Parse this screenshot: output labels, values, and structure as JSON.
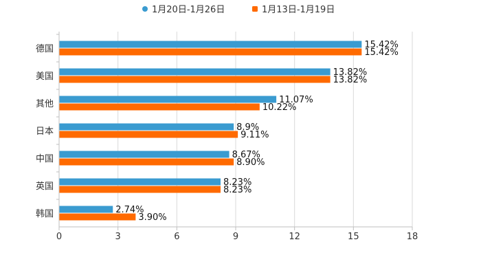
{
  "chart_data": {
    "type": "bar",
    "orientation": "horizontal",
    "categories": [
      "德国",
      "美国",
      "其他",
      "日本",
      "中国",
      "英国",
      "韩国"
    ],
    "series": [
      {
        "name": "1月20日-1月26日",
        "color": "#3a9bd0",
        "values": [
          15.42,
          13.82,
          11.07,
          8.9,
          8.67,
          8.23,
          2.74
        ],
        "labels": [
          "15.42%",
          "13.82%",
          "11.07%",
          "8.9%",
          "8.67%",
          "8.23%",
          "2.74%"
        ]
      },
      {
        "name": "1月13日-1月19日",
        "color": "#ff6a00",
        "values": [
          15.42,
          13.82,
          10.22,
          9.11,
          8.9,
          8.23,
          3.9
        ],
        "labels": [
          "15.42%",
          "13.82%",
          "10.22%",
          "9.11%",
          "8.90%",
          "8.23%",
          "3.90%"
        ]
      }
    ],
    "xlim": [
      0,
      18
    ],
    "xticks": [
      "0",
      "3",
      "6",
      "9",
      "12",
      "15",
      "18"
    ],
    "xtick_values": [
      0,
      3,
      6,
      9,
      12,
      15,
      18
    ],
    "grid": true,
    "legend": "top-center",
    "title": "",
    "xlabel": "",
    "ylabel": ""
  }
}
